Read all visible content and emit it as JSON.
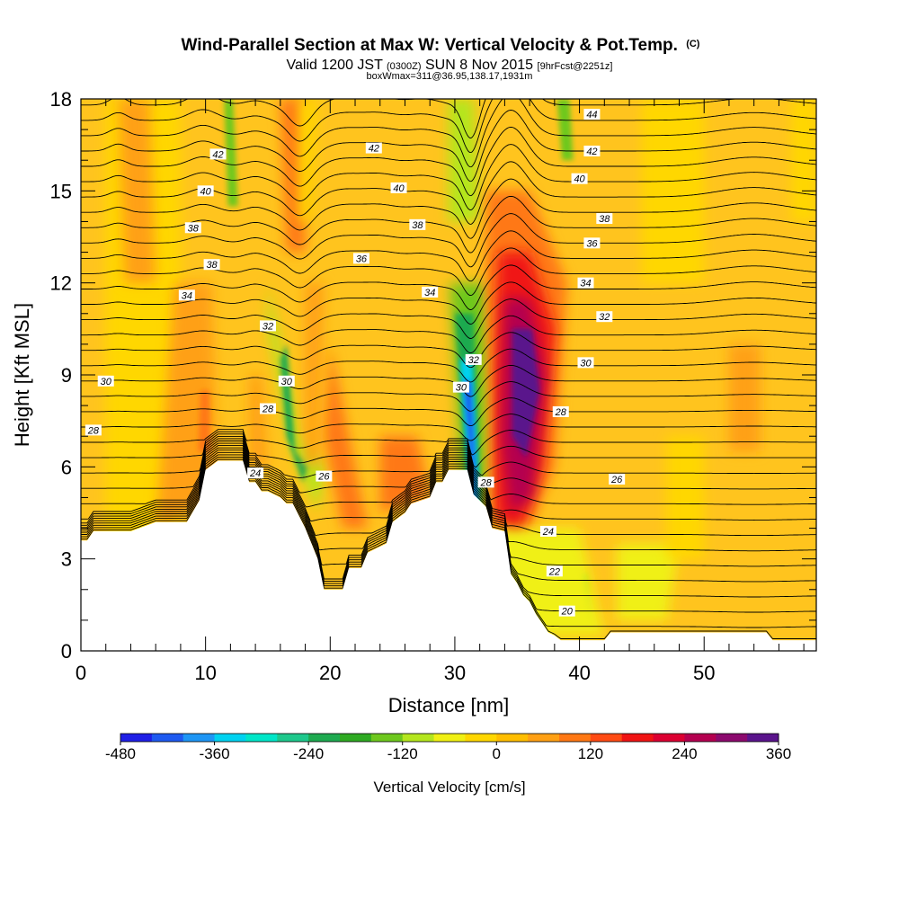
{
  "chart_data": {
    "type": "heatmap",
    "title": "Wind-Parallel Section at Max W: Vertical Velocity & Pot.Temp.",
    "title_mark": "(C)",
    "subtitle_parts": [
      "Valid 1200 JST",
      "(0300Z)",
      "SUN 8 Nov 2015",
      "[9hrFcst@2251z]"
    ],
    "subtitle2": "boxWmax=311@36.95,138.17,1931m",
    "xlabel": "Distance [nm]",
    "ylabel": "Height [Kft MSL]",
    "xlim": [
      0,
      59
    ],
    "ylim": [
      0,
      18
    ],
    "xticks": [
      0,
      10,
      20,
      30,
      40,
      50
    ],
    "yticks": [
      0,
      3,
      6,
      9,
      12,
      15,
      18
    ],
    "grid": false,
    "colorbar": {
      "label": "Vertical Velocity [cm/s]",
      "range": [
        -480,
        360
      ],
      "tick_values": [
        -480,
        -360,
        -240,
        -120,
        0,
        120,
        240,
        360
      ],
      "tick_labels": [
        "-480",
        "-360",
        "-240",
        "-120",
        "0",
        "120",
        "240",
        "360"
      ],
      "colors": [
        "#1f1fe6",
        "#1e5af0",
        "#1e96f5",
        "#00d2f0",
        "#00e6c8",
        "#1ec88c",
        "#1eaa50",
        "#2eaa22",
        "#6ec81e",
        "#b4e61e",
        "#f0f014",
        "#ffd700",
        "#ffbe00",
        "#ffa014",
        "#ff7814",
        "#ff4b14",
        "#f01414",
        "#dc0032",
        "#b40050",
        "#8c0a6e",
        "#5a148c"
      ]
    },
    "terrain": [
      [
        0,
        3.6
      ],
      [
        0.5,
        3.6
      ],
      [
        1,
        3.9
      ],
      [
        4,
        3.9
      ],
      [
        6,
        4.2
      ],
      [
        8.5,
        4.2
      ],
      [
        9.5,
        4.9
      ],
      [
        10,
        5.9
      ],
      [
        11,
        6.2
      ],
      [
        13,
        6.2
      ],
      [
        13.5,
        5.5
      ],
      [
        14,
        5.5
      ],
      [
        14.5,
        5.2
      ],
      [
        15,
        5.2
      ],
      [
        16,
        5
      ],
      [
        16.5,
        4.8
      ],
      [
        17,
        4.8
      ],
      [
        18,
        4
      ],
      [
        18.5,
        3.5
      ],
      [
        19,
        3
      ],
      [
        19.5,
        2
      ],
      [
        21,
        2
      ],
      [
        21.5,
        2.7
      ],
      [
        22.5,
        2.7
      ],
      [
        23,
        3.2
      ],
      [
        24.5,
        3.5
      ],
      [
        25,
        4.2
      ],
      [
        26,
        4.5
      ],
      [
        26.5,
        4.8
      ],
      [
        28,
        5
      ],
      [
        28.5,
        5.5
      ],
      [
        29,
        5.5
      ],
      [
        29.5,
        5.9
      ],
      [
        31,
        5.9
      ],
      [
        31.5,
        5.1
      ],
      [
        32.5,
        4.7
      ],
      [
        33,
        4
      ],
      [
        34,
        3.9
      ],
      [
        34.5,
        2.5
      ],
      [
        35,
        2.2
      ],
      [
        35.5,
        1.8
      ],
      [
        36,
        1.6
      ],
      [
        36.5,
        1.2
      ],
      [
        37,
        0.9
      ],
      [
        37.5,
        0.6
      ],
      [
        38,
        0.5
      ],
      [
        38.5,
        0.35
      ],
      [
        42,
        0.35
      ],
      [
        42.5,
        0.6
      ],
      [
        55,
        0.6
      ],
      [
        55.5,
        0.35
      ],
      [
        59,
        0.35
      ]
    ],
    "contour_labels": [
      {
        "text": "44",
        "x": 41,
        "y": 17.5
      },
      {
        "text": "42",
        "x": 11,
        "y": 16.2
      },
      {
        "text": "42",
        "x": 23.5,
        "y": 16.4
      },
      {
        "text": "42",
        "x": 41,
        "y": 16.3
      },
      {
        "text": "40",
        "x": 10,
        "y": 15
      },
      {
        "text": "40",
        "x": 25.5,
        "y": 15.1
      },
      {
        "text": "40",
        "x": 40,
        "y": 15.4
      },
      {
        "text": "38",
        "x": 9,
        "y": 13.8
      },
      {
        "text": "38",
        "x": 27,
        "y": 13.9
      },
      {
        "text": "38",
        "x": 42,
        "y": 14.1
      },
      {
        "text": "38",
        "x": 10.5,
        "y": 12.6
      },
      {
        "text": "36",
        "x": 22.5,
        "y": 12.8
      },
      {
        "text": "36",
        "x": 41,
        "y": 13.3
      },
      {
        "text": "34",
        "x": 8.5,
        "y": 11.6
      },
      {
        "text": "34",
        "x": 28,
        "y": 11.7
      },
      {
        "text": "34",
        "x": 40.5,
        "y": 12
      },
      {
        "text": "32",
        "x": 15,
        "y": 10.6
      },
      {
        "text": "32",
        "x": 31.5,
        "y": 9.5
      },
      {
        "text": "32",
        "x": 42,
        "y": 10.9
      },
      {
        "text": "30",
        "x": 2,
        "y": 8.8
      },
      {
        "text": "30",
        "x": 16.5,
        "y": 8.8
      },
      {
        "text": "30",
        "x": 30.5,
        "y": 8.6
      },
      {
        "text": "30",
        "x": 40.5,
        "y": 9.4
      },
      {
        "text": "28",
        "x": 1,
        "y": 7.2
      },
      {
        "text": "28",
        "x": 15,
        "y": 7.9
      },
      {
        "text": "28",
        "x": 38.5,
        "y": 7.8
      },
      {
        "text": "24",
        "x": 14,
        "y": 5.8
      },
      {
        "text": "26",
        "x": 19.5,
        "y": 5.7
      },
      {
        "text": "28",
        "x": 32.5,
        "y": 5.5
      },
      {
        "text": "26",
        "x": 43,
        "y": 5.6
      },
      {
        "text": "24",
        "x": 37.5,
        "y": 3.9
      },
      {
        "text": "22",
        "x": 38,
        "y": 2.6
      },
      {
        "text": "20",
        "x": 39,
        "y": 1.3
      }
    ]
  }
}
